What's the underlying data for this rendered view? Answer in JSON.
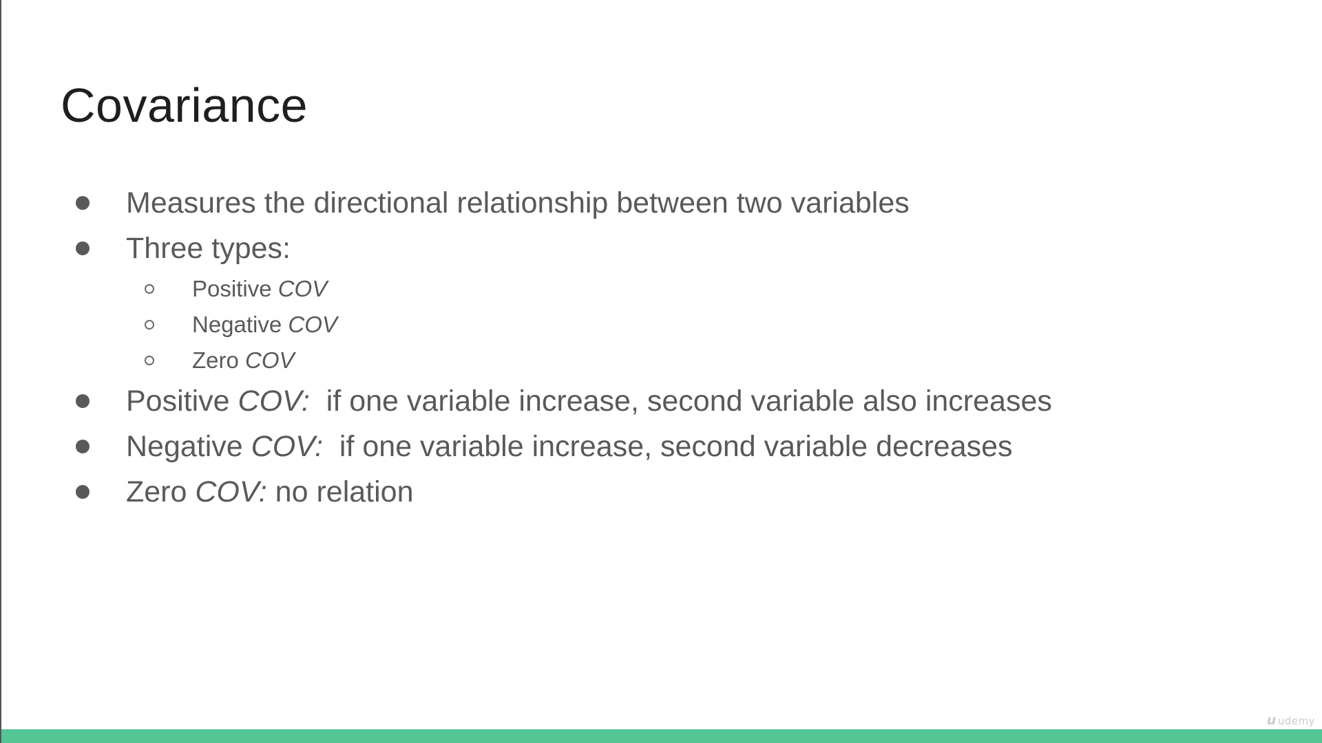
{
  "slide": {
    "title": "Covariance",
    "accent_color": "#56c596",
    "bullets": [
      {
        "level": 1,
        "label": "Measures the directional relationship between two variables",
        "term": ""
      },
      {
        "level": 1,
        "label": "Three types:",
        "term": ""
      },
      {
        "level": 2,
        "label": "Positive ",
        "term": "COV"
      },
      {
        "level": 2,
        "label": "Negative ",
        "term": "COV"
      },
      {
        "level": 2,
        "label": "Zero ",
        "term": "COV"
      },
      {
        "level": 1,
        "label": "Positive ",
        "term": "COV:",
        "rest": "  if one variable increase, second variable also increases"
      },
      {
        "level": 1,
        "label": "Negative ",
        "term": "COV:",
        "rest": "  if one variable increase, second variable decreases"
      },
      {
        "level": 1,
        "label": "Zero ",
        "term": "COV:",
        "rest": " no relation"
      }
    ]
  },
  "watermark": {
    "mark": "u",
    "text": "udemy"
  }
}
